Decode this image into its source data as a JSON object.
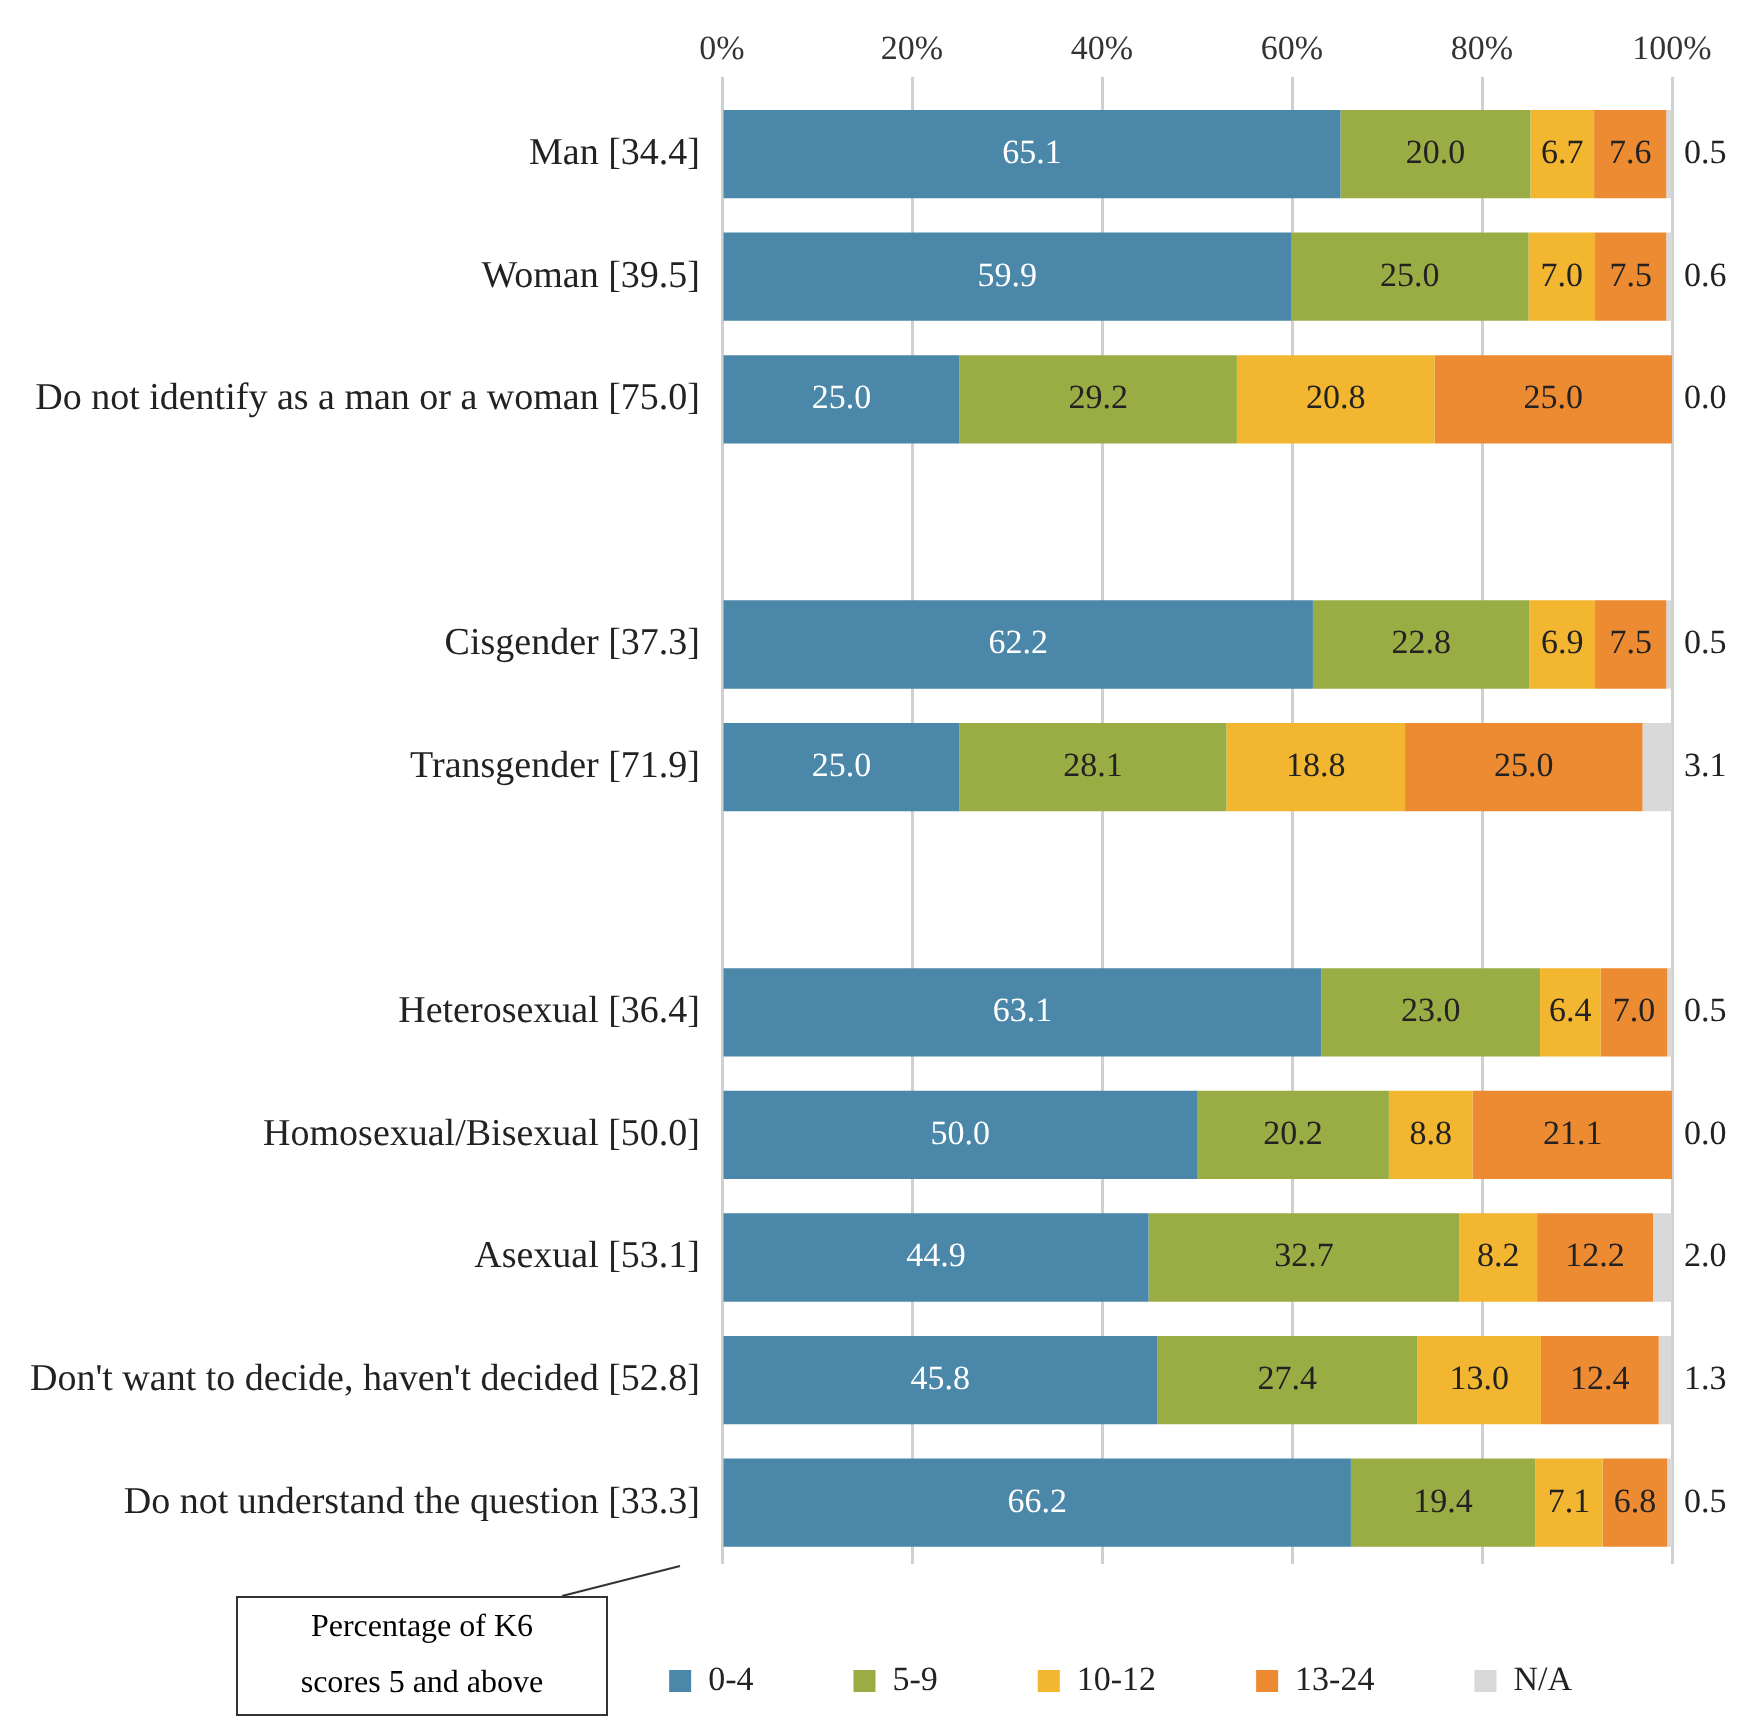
{
  "chart_data": {
    "type": "bar",
    "orientation": "horizontal",
    "stacked": true,
    "categories": [
      "Man [34.4]",
      "Woman [39.5]",
      "Do not identify as a man or a woman [75.0]",
      null,
      "Cisgender [37.3]",
      "Transgender [71.9]",
      null,
      "Heterosexual [36.4]",
      "Homosexual/Bisexual [50.0]",
      "Asexual [53.1]",
      "Don't want to decide, haven't decided [52.8]",
      "Do not understand the question [33.3]"
    ],
    "series": [
      {
        "name": "0-4",
        "color": "#4a87a8",
        "values": [
          65.1,
          59.9,
          25.0,
          null,
          62.2,
          25.0,
          null,
          63.1,
          50.0,
          44.9,
          45.8,
          66.2
        ],
        "value_labels": [
          "65.1",
          "59.9",
          "25.0",
          null,
          "62.2",
          "25.0",
          null,
          "63.1",
          "50.0",
          "44.9",
          "45.8",
          "66.2"
        ]
      },
      {
        "name": "5-9",
        "color": "#9aad45",
        "values": [
          20.0,
          25.0,
          29.2,
          null,
          22.8,
          28.1,
          null,
          23.0,
          20.2,
          32.7,
          27.4,
          19.4
        ],
        "value_labels": [
          "20.0",
          "25.0",
          "29.2",
          null,
          "22.8",
          "28.1",
          null,
          "23.0",
          "20.2",
          "32.7",
          "27.4",
          "19.4"
        ]
      },
      {
        "name": "10-12",
        "color": "#f2b631",
        "values": [
          6.7,
          7.0,
          20.8,
          null,
          6.9,
          18.8,
          null,
          6.4,
          8.8,
          8.2,
          13.0,
          7.1
        ],
        "value_labels": [
          "6.7",
          "7.0",
          "20.8",
          null,
          "6.9",
          "18.8",
          null,
          "6.4",
          "8.8",
          "8.2",
          "13.0",
          "7.1"
        ]
      },
      {
        "name": "13-24",
        "color": "#ed8b33",
        "values": [
          7.6,
          7.5,
          25.0,
          null,
          7.5,
          25.0,
          null,
          7.0,
          21.1,
          12.2,
          12.4,
          6.8
        ],
        "value_labels": [
          "7.6",
          "7.5",
          "25.0",
          null,
          "7.5",
          "25.0",
          null,
          "7.0",
          "21.1",
          "12.2",
          "12.4",
          "6.8"
        ]
      },
      {
        "name": "N/A",
        "color": "#d9d9d9",
        "values": [
          0.5,
          0.6,
          0.0,
          null,
          0.5,
          3.1,
          null,
          0.5,
          0.0,
          2.0,
          1.3,
          0.5
        ],
        "value_labels": [
          "0.5",
          "0.6",
          "0.0",
          null,
          "0.5",
          "3.1",
          null,
          "0.5",
          "0.0",
          "2.0",
          "1.3",
          "0.5"
        ]
      }
    ],
    "xlim": [
      0,
      100
    ],
    "xticks": [
      {
        "value": 0,
        "label": "0%"
      },
      {
        "value": 20,
        "label": "20%"
      },
      {
        "value": 40,
        "label": "40%"
      },
      {
        "value": 60,
        "label": "60%"
      },
      {
        "value": 80,
        "label": "80%"
      },
      {
        "value": 100,
        "label": "100%"
      }
    ],
    "grid": "x",
    "legend": "bottom",
    "annotations": [
      "Percentage of K6 scores 5 and above"
    ]
  }
}
